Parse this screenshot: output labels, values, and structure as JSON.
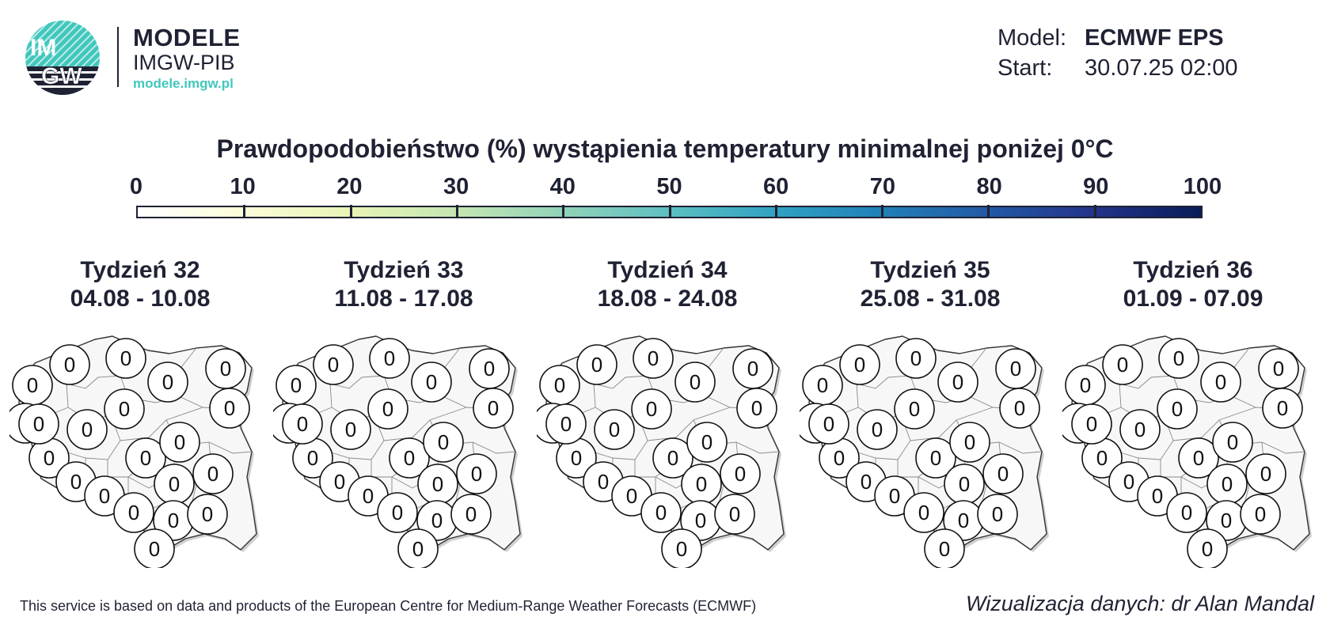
{
  "logo": {
    "mark": "IMGW",
    "title": "MODELE",
    "subtitle": "IMGW-PIB",
    "url": "modele.imgw.pl",
    "colors": {
      "teal": "#41c7bd",
      "navy": "#1f2233"
    }
  },
  "meta": {
    "model_label": "Model:",
    "model_value": "ECMWF EPS",
    "start_label": "Start:",
    "start_value": "30.07.25 02:00"
  },
  "title": "Prawdopodobieństwo (%) wystąpienia temperatury minimalnej poniżej 0°C",
  "colorbar": {
    "ticks": [
      "0",
      "10",
      "20",
      "30",
      "40",
      "50",
      "60",
      "70",
      "80",
      "90",
      "100"
    ],
    "colors": [
      "#ffffff",
      "#fdfdd8",
      "#e8f4b5",
      "#c5e6b2",
      "#92d2b9",
      "#5ebfc1",
      "#30a2c2",
      "#2180b8",
      "#2358a5",
      "#24338a",
      "#081d58"
    ]
  },
  "panels": [
    {
      "week": "Tydzień 32",
      "dates": "04.08 - 10.08",
      "values": [
        "0",
        "0",
        "0",
        "0",
        "0",
        "0",
        "0",
        "0",
        "0",
        "0",
        "0",
        "0",
        "0",
        "0",
        "0",
        "0",
        "0",
        "0",
        "0",
        "0",
        "0"
      ]
    },
    {
      "week": "Tydzień 33",
      "dates": "11.08 - 17.08",
      "values": [
        "0",
        "0",
        "0",
        "0",
        "0",
        "0",
        "0",
        "0",
        "0",
        "0",
        "0",
        "0",
        "0",
        "0",
        "0",
        "0",
        "0",
        "0",
        "0",
        "0",
        "0"
      ]
    },
    {
      "week": "Tydzień 34",
      "dates": "18.08 - 24.08",
      "values": [
        "0",
        "0",
        "0",
        "0",
        "0",
        "0",
        "0",
        "0",
        "0",
        "0",
        "0",
        "0",
        "0",
        "0",
        "0",
        "0",
        "0",
        "0",
        "0",
        "0",
        "0"
      ]
    },
    {
      "week": "Tydzień 35",
      "dates": "25.08 - 31.08",
      "values": [
        "0",
        "0",
        "0",
        "0",
        "0",
        "0",
        "0",
        "0",
        "0",
        "0",
        "0",
        "0",
        "0",
        "0",
        "0",
        "0",
        "0",
        "0",
        "0",
        "0",
        "0"
      ]
    },
    {
      "week": "Tydzień 36",
      "dates": "01.09 - 07.09",
      "values": [
        "0",
        "0",
        "0",
        "0",
        "0",
        "0",
        "0",
        "0",
        "0",
        "0",
        "0",
        "0",
        "0",
        "0",
        "0",
        "0",
        "0",
        "0",
        "0",
        "0",
        "0"
      ]
    }
  ],
  "footer": {
    "left": "This service is based on data and products of the European Centre for Medium-Range Weather Forecasts (ECMWF)",
    "right": "Wizualizacja danych: dr Alan Mandal"
  }
}
